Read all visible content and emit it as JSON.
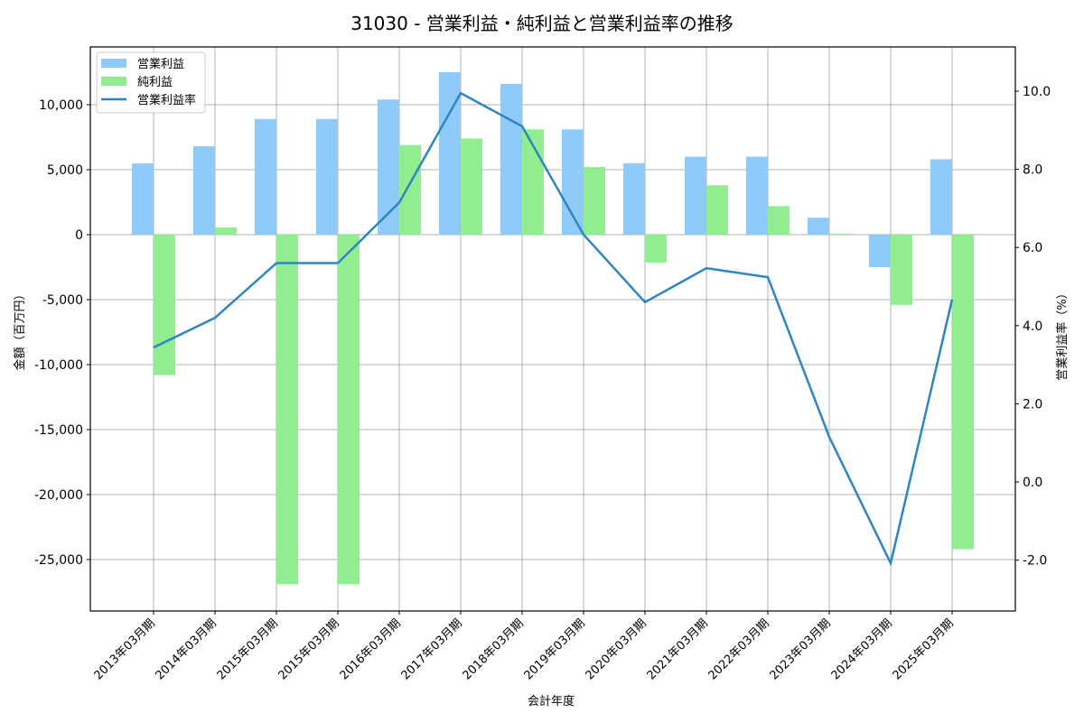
{
  "chart_data": {
    "type": "bar",
    "title": "31030 - 営業利益・純利益と営業利益率の推移",
    "xlabel": "会計年度",
    "ylabel": "金額（百万円）",
    "y2label": "営業利益率（%）",
    "categories": [
      "2013年03月期",
      "2014年03月期",
      "2015年03月期",
      "2015年03月期",
      "2016年03月期",
      "2017年03月期",
      "2018年03月期",
      "2019年03月期",
      "2020年03月期",
      "2021年03月期",
      "2022年03月期",
      "2023年03月期",
      "2024年03月期",
      "2025年03月期"
    ],
    "series": [
      {
        "name": "営業利益",
        "type": "bar",
        "axis": "left",
        "color": "#90CAF9",
        "values": [
          5480,
          6800,
          8900,
          8900,
          10400,
          12500,
          11600,
          8100,
          5500,
          6000,
          6000,
          1300,
          -2500,
          5800
        ]
      },
      {
        "name": "純利益",
        "type": "bar",
        "axis": "left",
        "color": "#90EE90",
        "values": [
          -10800,
          550,
          -26900,
          -26900,
          6900,
          7400,
          8100,
          5200,
          -2150,
          3800,
          2200,
          70,
          -5400,
          -24200
        ]
      },
      {
        "name": "営業利益率",
        "type": "line",
        "axis": "right",
        "color": "#2E86C1",
        "values": [
          3.44,
          4.2,
          5.6,
          5.6,
          7.15,
          9.95,
          9.1,
          6.33,
          4.6,
          5.47,
          5.24,
          1.15,
          -2.08,
          4.67
        ]
      }
    ],
    "ylim": [
      -28800,
      14300
    ],
    "y2lim": [
      -3.3,
      11.1
    ],
    "yticks": [
      -25000,
      -20000,
      -15000,
      -10000,
      -5000,
      0,
      5000,
      10000
    ],
    "ytick_labels": [
      "-25,000",
      "-20,000",
      "-15,000",
      "-10,000",
      "-5,000",
      "0",
      "5,000",
      "10,000"
    ],
    "y2ticks": [
      -2.0,
      0.0,
      2.0,
      4.0,
      6.0,
      8.0,
      10.0
    ],
    "y2tick_labels": [
      "-2.0",
      "0.0",
      "2.0",
      "4.0",
      "6.0",
      "8.0",
      "10.0"
    ],
    "grid": true,
    "legend_position": "upper left"
  }
}
